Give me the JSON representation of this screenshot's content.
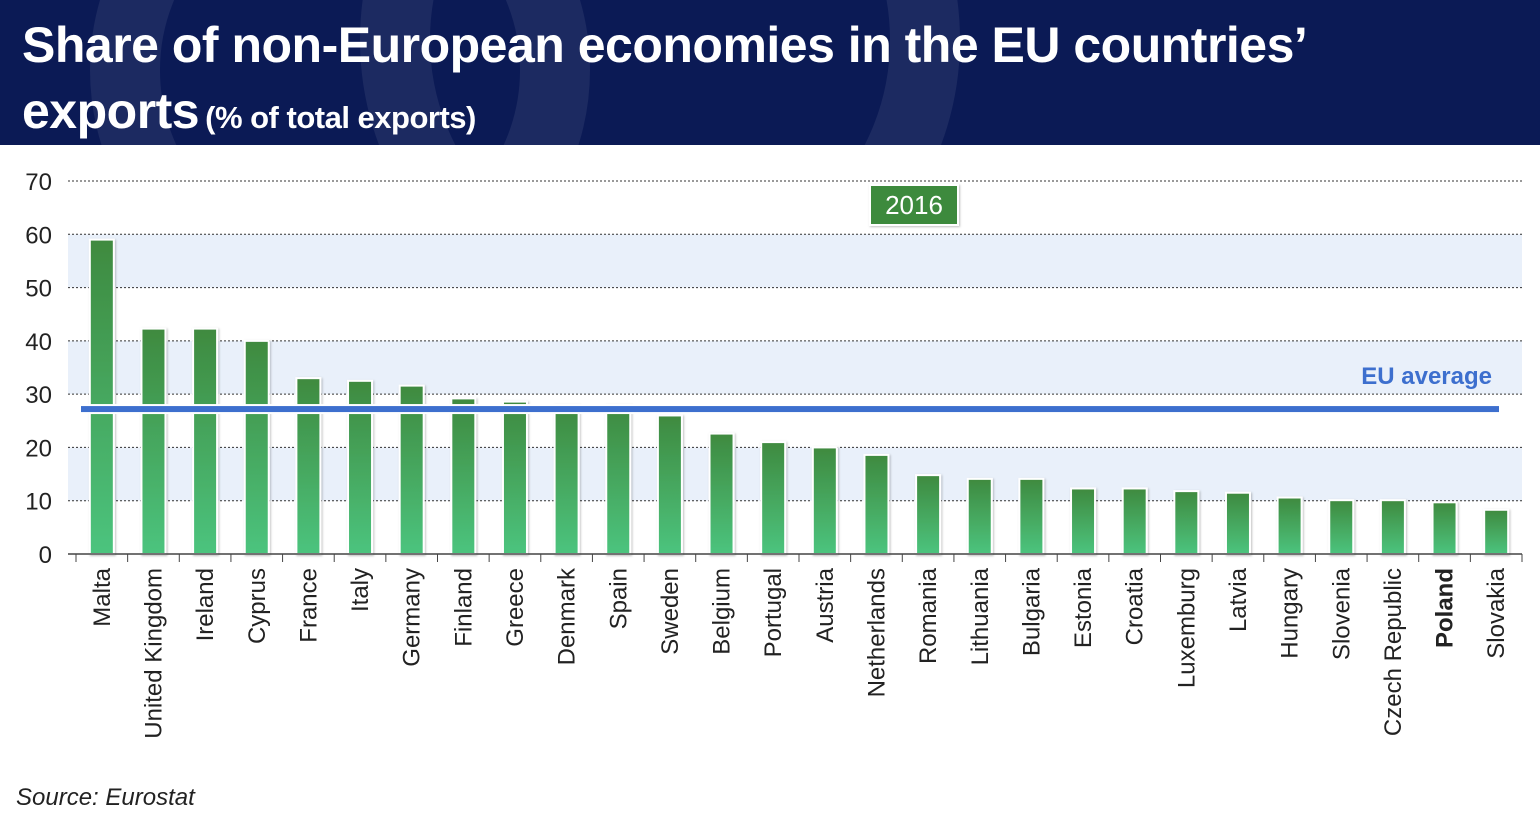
{
  "title": {
    "line1": "Share of non-European economies in the EU countries’",
    "line2": "exports",
    "subtitle": "(% of total exports)"
  },
  "source": "Source: Eurostat",
  "colors": {
    "header_bg": "#0b1a55",
    "bar_top": "#3f8a3f",
    "bar_bottom": "#4cc47e",
    "average_line": "#3d6fce",
    "band": "#e9f0fa",
    "highlight_label": "#3e8a3e"
  },
  "chart_data": {
    "type": "bar",
    "year_label": "2016",
    "categories": [
      "Malta",
      "United Kingdom",
      "Ireland",
      "Cyprus",
      "France",
      "Italy",
      "Germany",
      "Finland",
      "Greece",
      "Denmark",
      "Spain",
      "Sweden",
      "Belgium",
      "Portugal",
      "Austria",
      "Netherlands",
      "Romania",
      "Lithuania",
      "Bulgaria",
      "Estonia",
      "Croatia",
      "Luxemburg",
      "Latvia",
      "Hungary",
      "Slovenia",
      "Czech Republic",
      "Poland",
      "Slovakia"
    ],
    "values": [
      59,
      42.3,
      42.3,
      40,
      33,
      32.5,
      31.6,
      29.2,
      28.6,
      28,
      28,
      26,
      22.6,
      21,
      20,
      18.6,
      14.8,
      14.1,
      14.1,
      12.3,
      12.3,
      11.8,
      11.5,
      10.6,
      10.1,
      10.1,
      9.7,
      8.3
    ],
    "highlight": "Poland",
    "average": {
      "label": "EU average",
      "value": 27.2
    },
    "ylim": [
      0,
      70
    ],
    "yticks": [
      0,
      10,
      20,
      30,
      40,
      50,
      60,
      70
    ],
    "grid": true,
    "xlabel": "",
    "ylabel": ""
  }
}
